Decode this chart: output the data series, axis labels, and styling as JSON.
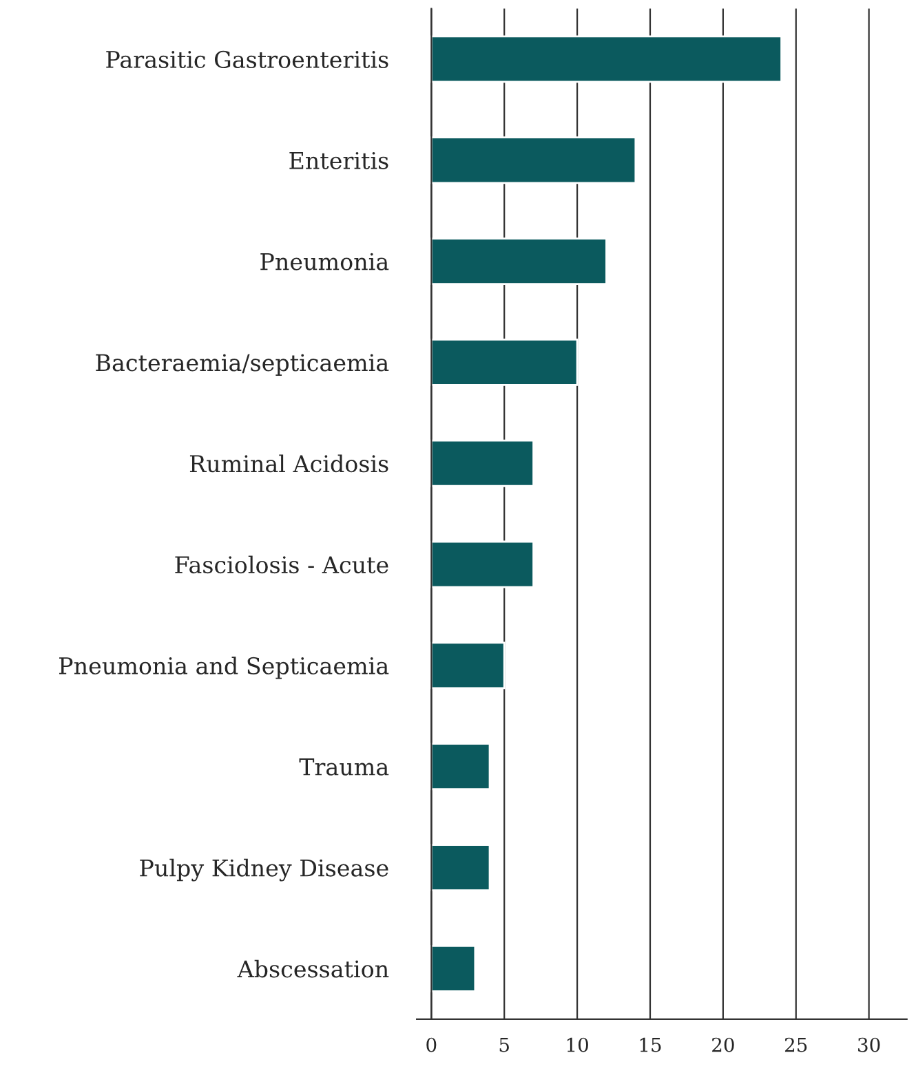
{
  "chart_data": {
    "type": "bar",
    "orientation": "horizontal",
    "categories": [
      "Parasitic Gastroenteritis",
      "Enteritis",
      "Pneumonia",
      "Bacteraemia/septicaemia",
      "Ruminal Acidosis",
      "Fasciolosis - Acute",
      "Pneumonia and Septicaemia",
      "Trauma",
      "Pulpy Kidney Disease",
      "Abscessation"
    ],
    "values": [
      24,
      14,
      12,
      10,
      7,
      7,
      5,
      4,
      4,
      3
    ],
    "color": "#0b5a5e",
    "xlim": [
      -1,
      32.6
    ],
    "xticks": [
      0,
      5,
      10,
      15,
      20,
      25,
      30
    ],
    "grid": "x"
  }
}
